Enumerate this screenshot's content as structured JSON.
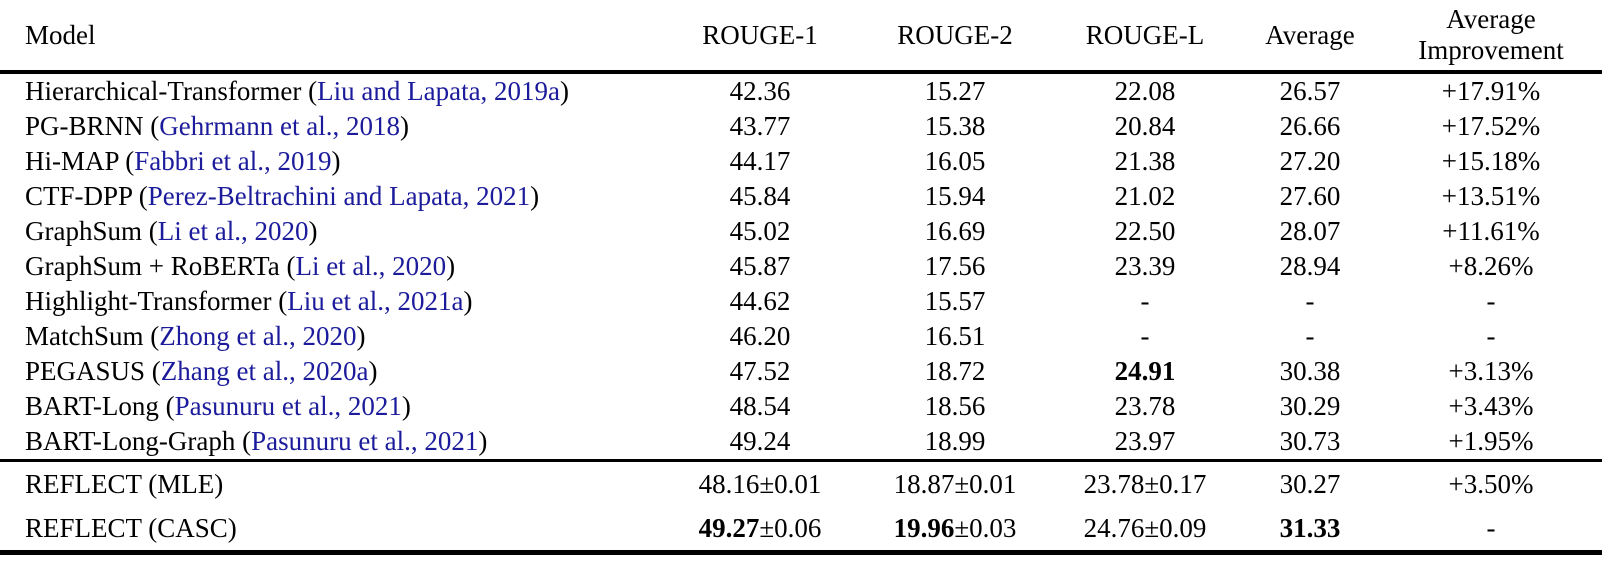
{
  "colors": {
    "text": "#000000",
    "citation": "#1b1b9b",
    "rule": "#000000",
    "background": "#ffffff"
  },
  "table": {
    "headers": {
      "model": "Model",
      "rouge1": "ROUGE-1",
      "rouge2": "ROUGE-2",
      "rougel": "ROUGE-L",
      "average": "Average",
      "improvement_line1": "Average",
      "improvement_line2": "Improvement"
    },
    "column_keys": [
      "rouge1",
      "rouge2",
      "rougel",
      "average",
      "improvement"
    ],
    "sections": [
      {
        "name": "baselines",
        "rows": [
          {
            "name": "Hierarchical-Transformer",
            "citation": "Liu and Lapata, 2019a",
            "values": [
              {
                "main": "42.36"
              },
              {
                "main": "15.27"
              },
              {
                "main": "22.08"
              },
              {
                "main": "26.57"
              },
              {
                "main": "+17.91%"
              }
            ]
          },
          {
            "name": "PG-BRNN",
            "citation": "Gehrmann et al., 2018",
            "values": [
              {
                "main": "43.77"
              },
              {
                "main": "15.38"
              },
              {
                "main": "20.84"
              },
              {
                "main": "26.66"
              },
              {
                "main": "+17.52%"
              }
            ]
          },
          {
            "name": "Hi-MAP",
            "citation": "Fabbri et al., 2019",
            "values": [
              {
                "main": "44.17"
              },
              {
                "main": "16.05"
              },
              {
                "main": "21.38"
              },
              {
                "main": "27.20"
              },
              {
                "main": "+15.18%"
              }
            ]
          },
          {
            "name": "CTF-DPP",
            "citation": "Perez-Beltrachini and Lapata, 2021",
            "values": [
              {
                "main": "45.84"
              },
              {
                "main": "15.94"
              },
              {
                "main": "21.02"
              },
              {
                "main": "27.60"
              },
              {
                "main": "+13.51%"
              }
            ]
          },
          {
            "name": "GraphSum",
            "citation": "Li et al., 2020",
            "values": [
              {
                "main": "45.02"
              },
              {
                "main": "16.69"
              },
              {
                "main": "22.50"
              },
              {
                "main": "28.07"
              },
              {
                "main": "+11.61%"
              }
            ]
          },
          {
            "name": "GraphSum + RoBERTa",
            "citation": "Li et al., 2020",
            "values": [
              {
                "main": "45.87"
              },
              {
                "main": "17.56"
              },
              {
                "main": "23.39"
              },
              {
                "main": "28.94"
              },
              {
                "main": "+8.26%"
              }
            ]
          },
          {
            "name": "Highlight-Transformer",
            "citation": "Liu et al., 2021a",
            "values": [
              {
                "main": "44.62"
              },
              {
                "main": "15.57"
              },
              {
                "main": "-"
              },
              {
                "main": "-"
              },
              {
                "main": "-"
              }
            ]
          },
          {
            "name": "MatchSum",
            "citation": "Zhong et al., 2020",
            "values": [
              {
                "main": "46.20"
              },
              {
                "main": "16.51"
              },
              {
                "main": "-"
              },
              {
                "main": "-"
              },
              {
                "main": "-"
              }
            ]
          },
          {
            "name": "PEGASUS",
            "citation": "Zhang et al., 2020a",
            "values": [
              {
                "main": "47.52"
              },
              {
                "main": "18.72"
              },
              {
                "main": "24.91",
                "bold": true
              },
              {
                "main": "30.38"
              },
              {
                "main": "+3.13%"
              }
            ]
          },
          {
            "name": "BART-Long",
            "citation": "Pasunuru et al., 2021",
            "values": [
              {
                "main": "48.54"
              },
              {
                "main": "18.56"
              },
              {
                "main": "23.78"
              },
              {
                "main": "30.29"
              },
              {
                "main": "+3.43%"
              }
            ]
          },
          {
            "name": "BART-Long-Graph",
            "citation": "Pasunuru et al., 2021",
            "values": [
              {
                "main": "49.24"
              },
              {
                "main": "18.99"
              },
              {
                "main": "23.97"
              },
              {
                "main": "30.73"
              },
              {
                "main": "+1.95%"
              }
            ]
          }
        ]
      },
      {
        "name": "reflect",
        "rows": [
          {
            "name": "REFLECT (MLE)",
            "citation": null,
            "values": [
              {
                "main": "48.16",
                "pm": "0.01"
              },
              {
                "main": "18.87",
                "pm": "0.01"
              },
              {
                "main": "23.78",
                "pm": "0.17"
              },
              {
                "main": "30.27"
              },
              {
                "main": "+3.50%"
              }
            ]
          },
          {
            "name": "REFLECT (CASC)",
            "citation": null,
            "values": [
              {
                "main": "49.27",
                "pm": "0.06",
                "bold": true
              },
              {
                "main": "19.96",
                "pm": "0.03",
                "bold": true
              },
              {
                "main": "24.76",
                "pm": "0.09"
              },
              {
                "main": "31.33",
                "bold": true
              },
              {
                "main": "-"
              }
            ]
          }
        ]
      }
    ]
  }
}
